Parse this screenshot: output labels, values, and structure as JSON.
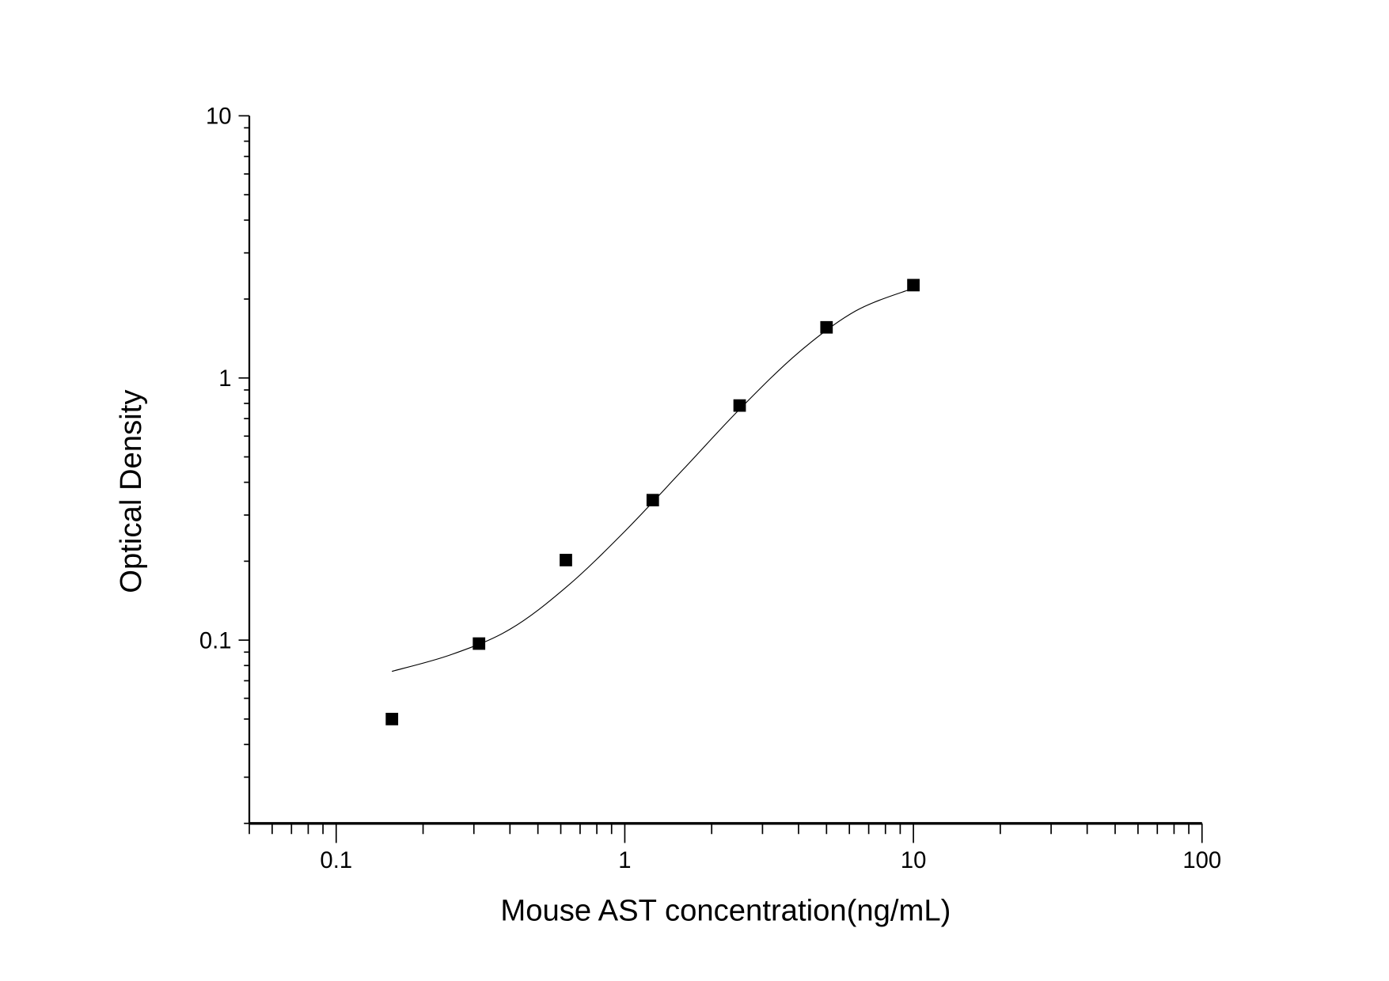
{
  "chart_data": {
    "type": "scatter",
    "title": "",
    "xlabel": "Mouse AST concentration(ng/mL)",
    "ylabel": "Optical Density",
    "xscale": "log",
    "yscale": "log",
    "xlim": [
      0.05,
      100
    ],
    "ylim": [
      0.02,
      10
    ],
    "xticks": [
      {
        "value": 0.1,
        "label": "0.1"
      },
      {
        "value": 1,
        "label": "1"
      },
      {
        "value": 10,
        "label": "10"
      },
      {
        "value": 100,
        "label": "100"
      }
    ],
    "yticks": [
      {
        "value": 0.1,
        "label": "0.1"
      },
      {
        "value": 1,
        "label": "1"
      },
      {
        "value": 10,
        "label": "10"
      }
    ],
    "grid": false,
    "marker": "square",
    "color": "#000000",
    "series": [
      {
        "x": [
          0.156,
          0.3125,
          0.625,
          1.25,
          2.5,
          5,
          10
        ],
        "y": [
          0.05,
          0.097,
          0.202,
          0.342,
          0.785,
          1.56,
          2.26
        ]
      }
    ],
    "fit_curve": {
      "x": [
        0.156,
        0.25,
        0.4,
        0.63,
        1.0,
        1.6,
        2.5,
        4.0,
        6.3,
        10
      ],
      "y": [
        0.076,
        0.088,
        0.11,
        0.16,
        0.26,
        0.45,
        0.76,
        1.25,
        1.8,
        2.2
      ]
    }
  }
}
